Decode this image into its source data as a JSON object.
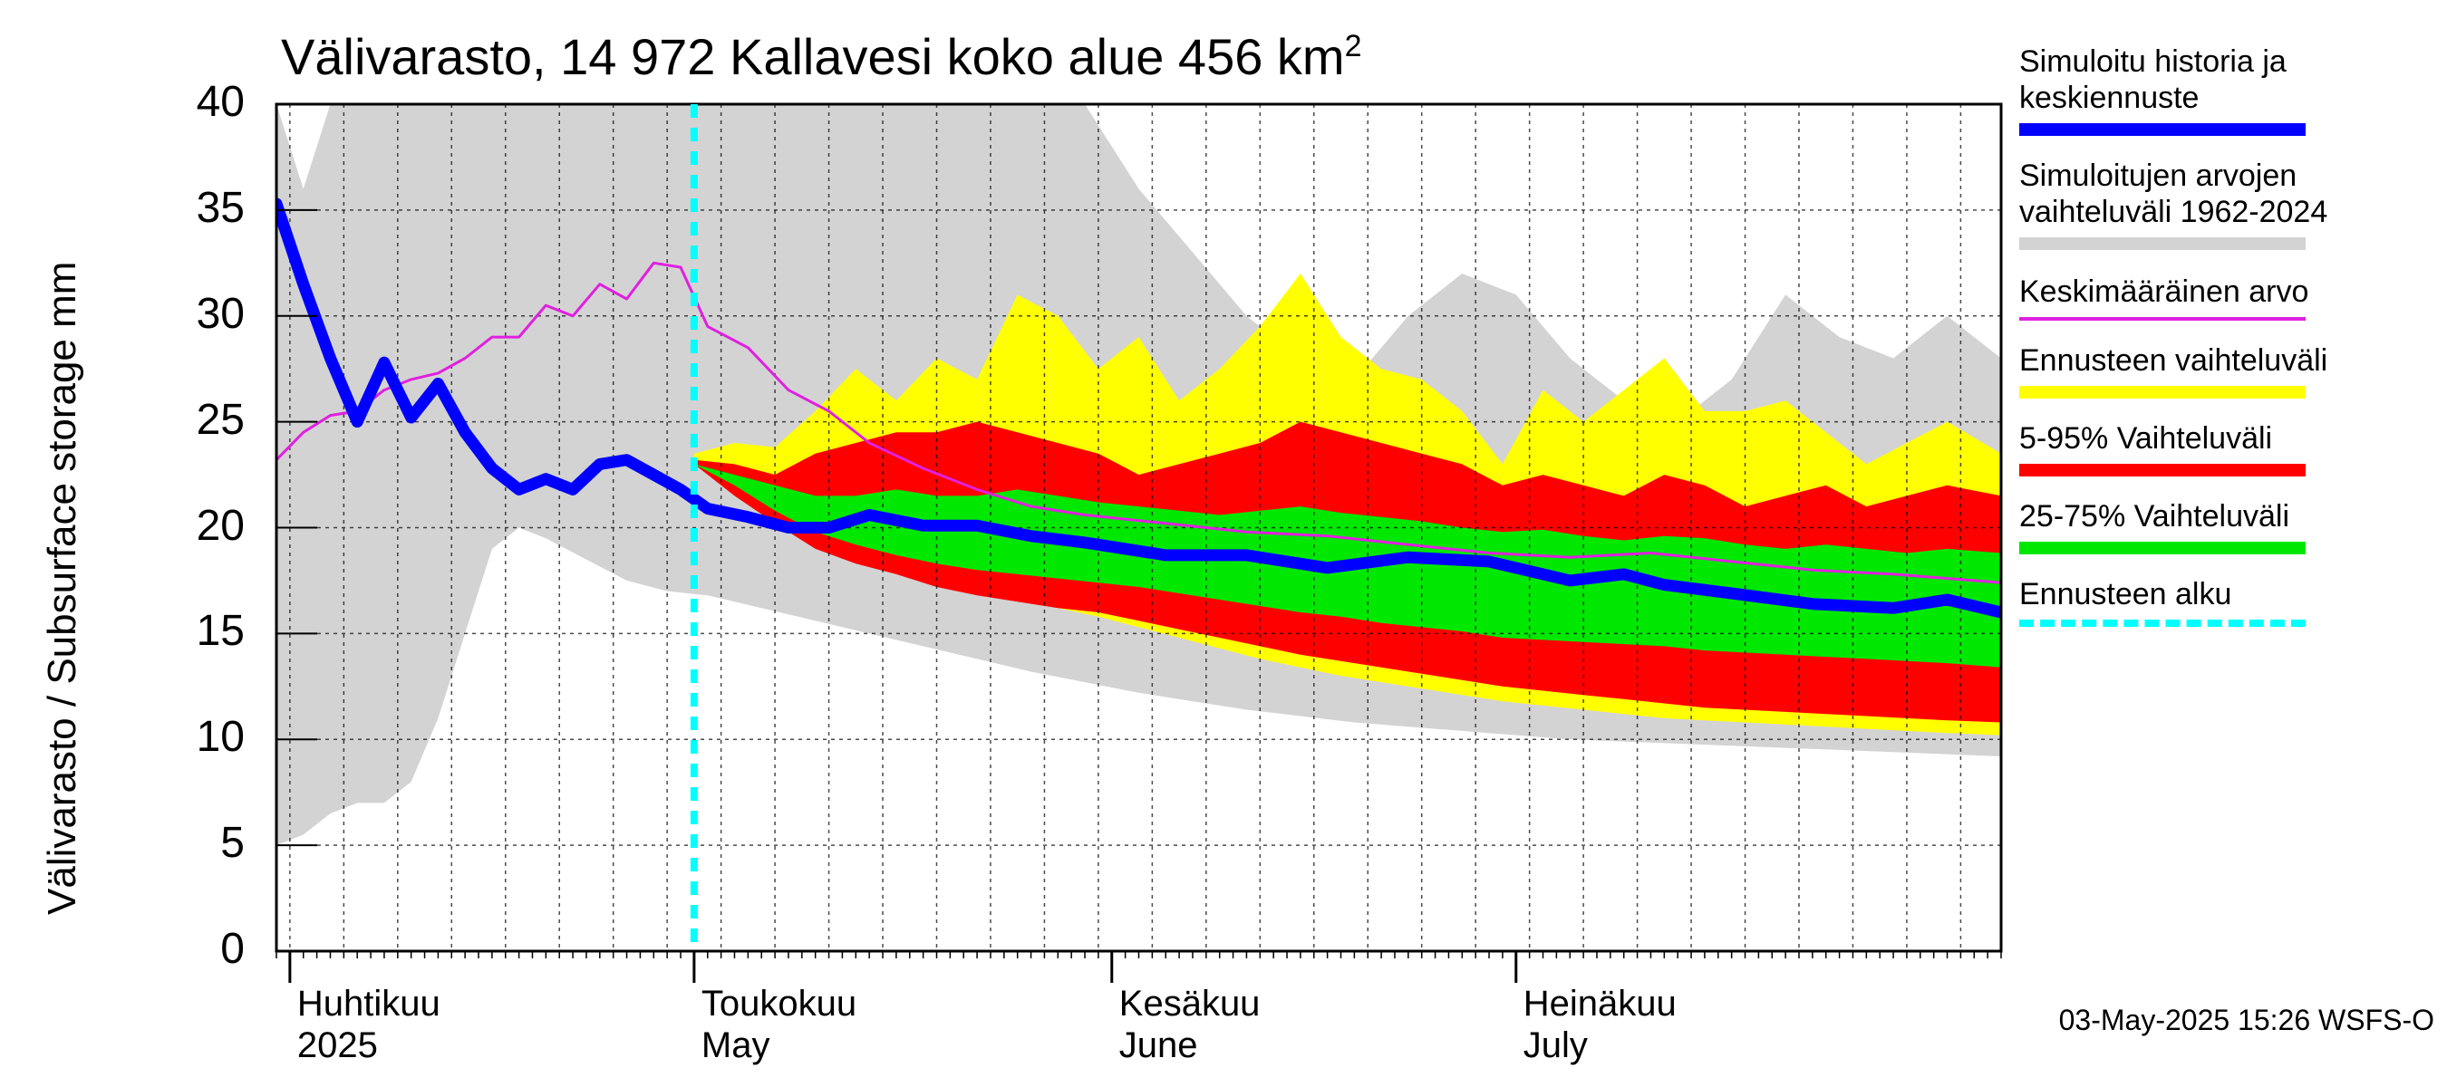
{
  "title": "Välivarasto, 14 972 Kallavesi koko alue 456 km²",
  "title_main": "Välivarasto, 14 972 Kallavesi koko alue 456 km",
  "title_sup": "2",
  "timestamp": "03-May-2025 15:26 WSFS-O",
  "colors": {
    "history": "#d3d3d3",
    "yellow": "#ffff00",
    "red": "#ff0000",
    "green": "#00e800",
    "blue": "#0000ff",
    "magenta": "#e020e0",
    "forecast_start": "#00ffff",
    "grid": "#000000"
  },
  "months": [
    {
      "fi": "Huhtikuu",
      "en": "2025"
    },
    {
      "fi": "Toukokuu",
      "en": "May"
    },
    {
      "fi": "Kesäkuu",
      "en": "June"
    },
    {
      "fi": "Heinäkuu",
      "en": "July"
    }
  ],
  "legend": [
    {
      "label": "Simuloitu historia ja keskiennuste",
      "swatch": "blue"
    },
    {
      "label": "Simuloitujen arvojen vaihteluväli 1962-2024",
      "swatch": "history"
    },
    {
      "label": "Keskimääräinen arvo",
      "swatch": "magenta"
    },
    {
      "label": "Ennusteen vaihteluväli",
      "swatch": "yellow"
    },
    {
      "label": "5-95% Vaihteluväli",
      "swatch": "red"
    },
    {
      "label": "25-75% Vaihteluväli",
      "swatch": "green"
    },
    {
      "label": "Ennusteen alku",
      "swatch": "forecast_start"
    }
  ],
  "chart_data": {
    "type": "area",
    "title": "Välivarasto, 14 972 Kallavesi koko alue 456 km²",
    "ylabel": "Välivarasto / Subsurface storage  mm",
    "xlabel": "",
    "x_range": [
      "2025-03-31",
      "2025-08-06"
    ],
    "ylim": [
      0,
      40
    ],
    "yticks": [
      0,
      5,
      10,
      15,
      20,
      25,
      30,
      35,
      40
    ],
    "grid": true,
    "legend_position": "right",
    "forecast_start": "2025-05-01",
    "month_starts": [
      "2025-04-01",
      "2025-05-01",
      "2025-06-01",
      "2025-07-01"
    ],
    "series": [
      {
        "name": "Simuloitujen arvojen vaihteluväli 1962-2024",
        "kind": "band",
        "x": [
          "2025-03-31",
          "2025-04-02",
          "2025-04-04",
          "2025-04-06",
          "2025-04-08",
          "2025-04-10",
          "2025-04-12",
          "2025-04-14",
          "2025-04-16",
          "2025-04-18",
          "2025-04-20",
          "2025-04-23",
          "2025-04-26",
          "2025-04-29",
          "2025-05-02",
          "2025-05-06",
          "2025-05-10",
          "2025-05-14",
          "2025-05-18",
          "2025-05-22",
          "2025-05-26",
          "2025-05-30",
          "2025-06-03",
          "2025-06-07",
          "2025-06-11",
          "2025-06-15",
          "2025-06-19",
          "2025-06-23",
          "2025-06-27",
          "2025-07-01",
          "2025-07-05",
          "2025-07-09",
          "2025-07-13",
          "2025-07-17",
          "2025-07-21",
          "2025-07-25",
          "2025-07-29",
          "2025-08-02",
          "2025-08-06"
        ],
        "upper": [
          40,
          36,
          40,
          40,
          40,
          40,
          40,
          40,
          40,
          40,
          40,
          40,
          40,
          40,
          40,
          40,
          40,
          40,
          40,
          40,
          40,
          40,
          36,
          33,
          30,
          28,
          27,
          30,
          32,
          31,
          28,
          26,
          25,
          27,
          31,
          29,
          28,
          30,
          28
        ],
        "lower": [
          5,
          5.5,
          6.5,
          7,
          7,
          8,
          11,
          15,
          19,
          20,
          19.5,
          18.5,
          17.5,
          17,
          16.8,
          16.2,
          15.6,
          15,
          14.4,
          13.8,
          13.2,
          12.7,
          12.2,
          11.8,
          11.4,
          11.1,
          10.8,
          10.6,
          10.4,
          10.2,
          10,
          9.9,
          9.8,
          9.7,
          9.6,
          9.5,
          9.4,
          9.3,
          9.2
        ]
      },
      {
        "name": "Ennusteen vaihteluväli",
        "kind": "band",
        "x": [
          "2025-05-01",
          "2025-05-04",
          "2025-05-07",
          "2025-05-10",
          "2025-05-13",
          "2025-05-16",
          "2025-05-19",
          "2025-05-22",
          "2025-05-25",
          "2025-05-28",
          "2025-05-31",
          "2025-06-03",
          "2025-06-06",
          "2025-06-09",
          "2025-06-12",
          "2025-06-15",
          "2025-06-18",
          "2025-06-21",
          "2025-06-24",
          "2025-06-27",
          "2025-06-30",
          "2025-07-03",
          "2025-07-06",
          "2025-07-09",
          "2025-07-12",
          "2025-07-15",
          "2025-07-18",
          "2025-07-21",
          "2025-07-24",
          "2025-07-27",
          "2025-07-30",
          "2025-08-02",
          "2025-08-06"
        ],
        "upper": [
          23.5,
          24,
          23.8,
          25.5,
          27.5,
          26,
          28,
          27,
          31,
          30,
          27.5,
          29,
          26,
          27.5,
          29.5,
          32,
          29,
          27.5,
          27,
          25.5,
          23,
          26.5,
          25,
          26.5,
          28,
          25.5,
          25.5,
          26,
          24.5,
          23,
          24,
          25,
          23.5
        ],
        "lower": [
          23,
          21.8,
          20.5,
          19.4,
          18.6,
          18,
          17.5,
          17,
          16.6,
          16.2,
          15.8,
          15.3,
          14.8,
          14.3,
          13.8,
          13.4,
          13,
          12.7,
          12.4,
          12.1,
          11.8,
          11.6,
          11.4,
          11.2,
          11,
          10.9,
          10.8,
          10.7,
          10.6,
          10.5,
          10.4,
          10.3,
          10.2
        ]
      },
      {
        "name": "5-95% Vaihteluväli",
        "kind": "band",
        "x": [
          "2025-05-01",
          "2025-05-04",
          "2025-05-07",
          "2025-05-10",
          "2025-05-13",
          "2025-05-16",
          "2025-05-19",
          "2025-05-22",
          "2025-05-25",
          "2025-05-28",
          "2025-05-31",
          "2025-06-03",
          "2025-06-06",
          "2025-06-09",
          "2025-06-12",
          "2025-06-15",
          "2025-06-18",
          "2025-06-21",
          "2025-06-24",
          "2025-06-27",
          "2025-06-30",
          "2025-07-03",
          "2025-07-06",
          "2025-07-09",
          "2025-07-12",
          "2025-07-15",
          "2025-07-18",
          "2025-07-21",
          "2025-07-24",
          "2025-07-27",
          "2025-07-30",
          "2025-08-02",
          "2025-08-06"
        ],
        "upper": [
          23.2,
          23,
          22.5,
          23.5,
          24,
          24.5,
          24.5,
          25,
          24.5,
          24,
          23.5,
          22.5,
          23,
          23.5,
          24,
          25,
          24.5,
          24,
          23.5,
          23,
          22,
          22.5,
          22,
          21.5,
          22.5,
          22,
          21,
          21.5,
          22,
          21,
          21.5,
          22,
          21.5
        ],
        "lower": [
          23,
          21.5,
          20.2,
          19,
          18.3,
          17.8,
          17.2,
          16.8,
          16.5,
          16.2,
          16,
          15.6,
          15.2,
          14.8,
          14.4,
          14,
          13.7,
          13.4,
          13.1,
          12.8,
          12.5,
          12.3,
          12.1,
          11.9,
          11.7,
          11.5,
          11.4,
          11.3,
          11.2,
          11.1,
          11,
          10.9,
          10.8
        ]
      },
      {
        "name": "25-75% Vaihteluväli",
        "kind": "band",
        "x": [
          "2025-05-01",
          "2025-05-04",
          "2025-05-07",
          "2025-05-10",
          "2025-05-13",
          "2025-05-16",
          "2025-05-19",
          "2025-05-22",
          "2025-05-25",
          "2025-05-28",
          "2025-05-31",
          "2025-06-03",
          "2025-06-06",
          "2025-06-09",
          "2025-06-12",
          "2025-06-15",
          "2025-06-18",
          "2025-06-21",
          "2025-06-24",
          "2025-06-27",
          "2025-06-30",
          "2025-07-03",
          "2025-07-06",
          "2025-07-09",
          "2025-07-12",
          "2025-07-15",
          "2025-07-18",
          "2025-07-21",
          "2025-07-24",
          "2025-07-27",
          "2025-07-30",
          "2025-08-02",
          "2025-08-06"
        ],
        "upper": [
          23,
          22.5,
          22,
          21.5,
          21.5,
          21.8,
          21.5,
          21.5,
          21.8,
          21.5,
          21.2,
          21,
          20.8,
          20.6,
          20.8,
          21,
          20.7,
          20.5,
          20.3,
          20,
          19.8,
          19.9,
          19.6,
          19.4,
          19.6,
          19.5,
          19.2,
          19,
          19.2,
          19,
          18.8,
          19,
          18.8
        ],
        "lower": [
          23,
          22,
          20.8,
          19.8,
          19.2,
          18.7,
          18.3,
          18,
          17.8,
          17.6,
          17.4,
          17.2,
          16.9,
          16.6,
          16.3,
          16,
          15.8,
          15.5,
          15.3,
          15.1,
          14.8,
          14.7,
          14.6,
          14.5,
          14.4,
          14.2,
          14.1,
          14,
          13.9,
          13.8,
          13.7,
          13.6,
          13.4
        ]
      },
      {
        "name": "Keskimääräinen arvo",
        "kind": "line",
        "x": [
          "2025-03-31",
          "2025-04-02",
          "2025-04-04",
          "2025-04-06",
          "2025-04-08",
          "2025-04-10",
          "2025-04-12",
          "2025-04-14",
          "2025-04-16",
          "2025-04-18",
          "2025-04-20",
          "2025-04-22",
          "2025-04-24",
          "2025-04-26",
          "2025-04-28",
          "2025-04-30",
          "2025-05-02",
          "2025-05-05",
          "2025-05-08",
          "2025-05-11",
          "2025-05-14",
          "2025-05-18",
          "2025-05-22",
          "2025-05-26",
          "2025-05-30",
          "2025-06-05",
          "2025-06-11",
          "2025-06-17",
          "2025-06-23",
          "2025-06-29",
          "2025-07-05",
          "2025-07-11",
          "2025-07-17",
          "2025-07-23",
          "2025-07-29",
          "2025-08-04",
          "2025-08-06"
        ],
        "values": [
          23.2,
          24.5,
          25.3,
          25.5,
          26.5,
          27,
          27.3,
          28,
          29,
          29,
          30.5,
          30,
          31.5,
          30.8,
          32.5,
          32.3,
          29.5,
          28.5,
          26.5,
          25.5,
          24,
          22.8,
          21.8,
          21,
          20.6,
          20.2,
          19.8,
          19.6,
          19.2,
          18.8,
          18.6,
          18.8,
          18.4,
          18,
          17.8,
          17.5,
          17.4
        ]
      },
      {
        "name": "Simuloitu historia ja keskiennuste",
        "kind": "line",
        "x": [
          "2025-03-31",
          "2025-04-02",
          "2025-04-04",
          "2025-04-06",
          "2025-04-08",
          "2025-04-10",
          "2025-04-12",
          "2025-04-14",
          "2025-04-16",
          "2025-04-18",
          "2025-04-20",
          "2025-04-22",
          "2025-04-24",
          "2025-04-26",
          "2025-04-28",
          "2025-04-30",
          "2025-05-02",
          "2025-05-05",
          "2025-05-08",
          "2025-05-11",
          "2025-05-14",
          "2025-05-18",
          "2025-05-22",
          "2025-05-26",
          "2025-05-30",
          "2025-06-05",
          "2025-06-11",
          "2025-06-17",
          "2025-06-23",
          "2025-06-29",
          "2025-07-05",
          "2025-07-09",
          "2025-07-12",
          "2025-07-17",
          "2025-07-23",
          "2025-07-29",
          "2025-08-02",
          "2025-08-06"
        ],
        "values": [
          35.3,
          31.5,
          28,
          25,
          27.8,
          25.2,
          26.8,
          24.5,
          22.8,
          21.8,
          22.3,
          21.8,
          23,
          23.2,
          22.5,
          21.8,
          20.9,
          20.5,
          20,
          20,
          20.6,
          20.1,
          20.1,
          19.6,
          19.3,
          18.7,
          18.7,
          18.1,
          18.6,
          18.4,
          17.5,
          17.8,
          17.3,
          16.9,
          16.4,
          16.2,
          16.6,
          16
        ]
      }
    ]
  },
  "axis": {
    "ylabel": "Välivarasto / Subsurface storage  mm",
    "yticks": [
      "0",
      "5",
      "10",
      "15",
      "20",
      "25",
      "30",
      "35",
      "40"
    ]
  }
}
